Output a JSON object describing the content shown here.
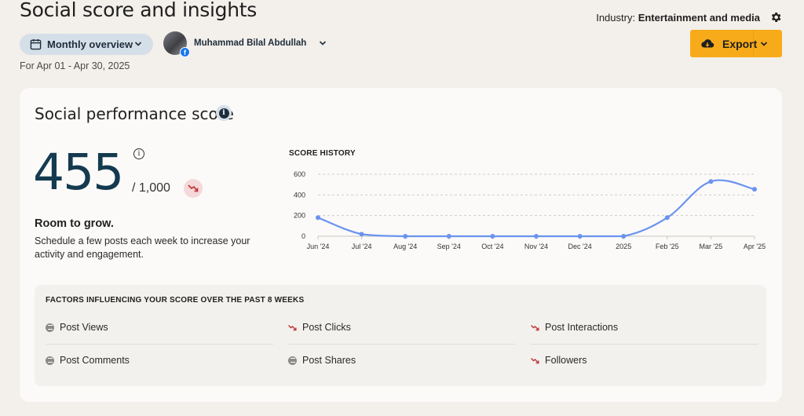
{
  "header": {
    "title": "Social score and insights",
    "industry_label": "Industry:",
    "industry_value": "Entertainment and media",
    "overview_label": "Monthly overview",
    "account_name": "Muhammad Bilal Abdullah",
    "account_network_badge": "f",
    "date_range": "For Apr 01 - Apr 30, 2025",
    "export_label": "Export"
  },
  "card": {
    "title": "Social performance score",
    "score": "455",
    "score_max": "/ 1,000",
    "status_heading": "Room to grow.",
    "status_description": "Schedule a few posts each week to increase your activity and engagement."
  },
  "chart_data": {
    "type": "line",
    "title": "SCORE HISTORY",
    "categories": [
      "Jun '24",
      "Jul '24",
      "Aug '24",
      "Sep '24",
      "Oct '24",
      "Nov '24",
      "Dec '24",
      "2025",
      "Feb '25",
      "Mar '25",
      "Apr '25"
    ],
    "series": [
      {
        "values": [
          180,
          20,
          0,
          0,
          0,
          0,
          0,
          0,
          180,
          530,
          455
        ]
      }
    ],
    "ylim": [
      0,
      600
    ],
    "yticks": [
      "0",
      "200",
      "400",
      "600"
    ],
    "grid": true,
    "color": "#6b93f0"
  },
  "factors": {
    "title": "FACTORS INFLUENCING YOUR SCORE OVER THE PAST 8 WEEKS",
    "items": [
      {
        "label": "Post Views",
        "trend": "neutral"
      },
      {
        "label": "Post Clicks",
        "trend": "down"
      },
      {
        "label": "Post Interactions",
        "trend": "down"
      },
      {
        "label": "Post Comments",
        "trend": "neutral"
      },
      {
        "label": "Post Shares",
        "trend": "neutral"
      },
      {
        "label": "Followers",
        "trend": "down"
      }
    ]
  },
  "colors": {
    "accent": "#f7ab1a",
    "score_text": "#143a4f",
    "negative": "#c23b3b",
    "chart_line": "#6b93f0"
  }
}
